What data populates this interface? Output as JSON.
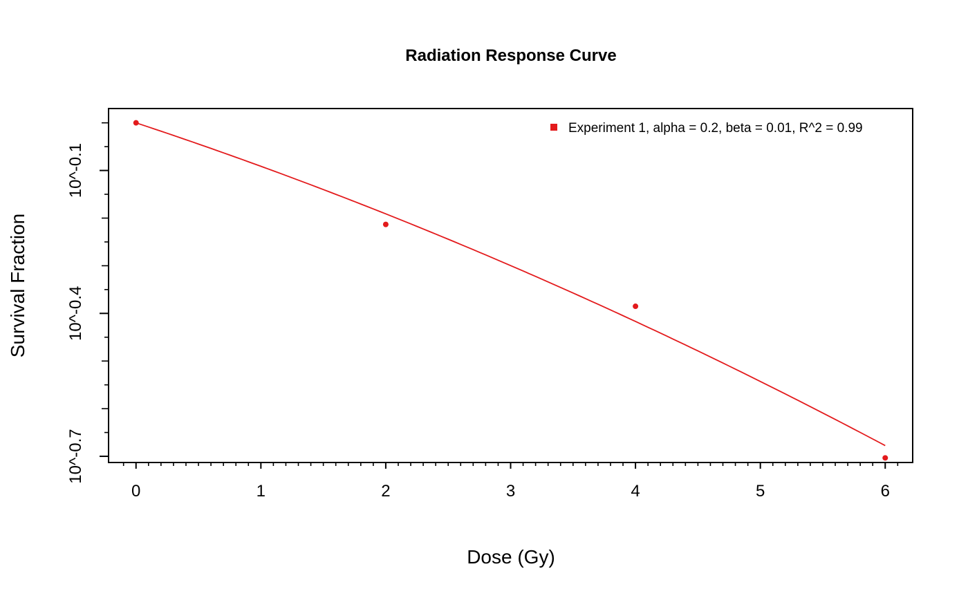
{
  "chart_data": {
    "type": "scatter",
    "title": "Radiation Response Curve",
    "xlabel": "Dose (Gy)",
    "ylabel": "Survival Fraction",
    "y_scale": "log10",
    "xlim": [
      -0.22,
      6.22
    ],
    "ylim_log10": [
      -0.713,
      0.03
    ],
    "x_ticks": [
      0,
      1,
      2,
      3,
      4,
      5,
      6
    ],
    "x_tick_labels": [
      "0",
      "1",
      "2",
      "3",
      "4",
      "5",
      "6"
    ],
    "y_major_ticks_log10": [
      -0.1,
      -0.4,
      -0.7
    ],
    "y_tick_labels": [
      "10^-0.1",
      "10^-0.4",
      "10^-0.7"
    ],
    "points": [
      {
        "x": 0,
        "y": 1.0
      },
      {
        "x": 2,
        "y": 0.612
      },
      {
        "x": 4,
        "y": 0.412
      },
      {
        "x": 6,
        "y": 0.198
      }
    ],
    "fit": {
      "model": "linear-quadratic",
      "alpha": 0.2,
      "beta": 0.01
    },
    "legend": {
      "position": "top-right",
      "entries": [
        {
          "label": "Experiment 1, alpha = 0.2, beta = 0.01, R^2 = 0.99",
          "color": "#e31a1c"
        }
      ]
    },
    "series_color": "#e31a1c",
    "grid": false
  }
}
